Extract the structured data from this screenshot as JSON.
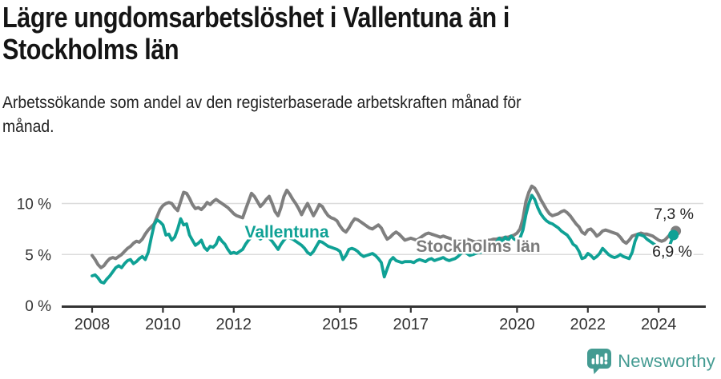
{
  "header": {
    "title": "Lägre ungdomsarbetslöshet i Vallentuna än i\nStockholms län",
    "subtitle": "Arbetssökande som andel av den registerbaserade arbetskraften månad för\nmånad."
  },
  "footer": {
    "brand": "Newsworthy",
    "logo_icon": "bar-chart-speech-bubble-icon"
  },
  "colors": {
    "vallentuna_line": "#0FA195",
    "stockholm_line": "#7F7F7F",
    "stockholm_label": "#7B7B7B",
    "axis": "#333333",
    "grid": "#DCDCDC",
    "title_text": "#151515",
    "brand_teal": "#449B92",
    "end_label_text": "#222222"
  },
  "chart_data": {
    "type": "line",
    "title": "Lägre ungdomsarbetslöshet i Vallentuna än i Stockholms län",
    "xlabel": "",
    "ylabel": "Arbetssökande som andel av den registerbaserade arbetskraften",
    "frequency": "monthly",
    "x_start": "2008-01",
    "x_end": "2024-06",
    "x_ticks": [
      2008,
      2010,
      2012,
      2015,
      2017,
      2020,
      2022,
      2024
    ],
    "y_ticks": [
      {
        "value": 0,
        "label": "0 %"
      },
      {
        "value": 5,
        "label": "5 %"
      },
      {
        "value": 10,
        "label": "10 %"
      }
    ],
    "ylim": [
      0,
      12.8
    ],
    "grid": "horizontal-only",
    "legend_position": "inline-labels",
    "series": [
      {
        "name": "Stockholms län",
        "color": "#7F7F7F",
        "end_label": "7,3 %",
        "last_value": 7.3,
        "values": [
          4.9,
          4.5,
          4.0,
          3.7,
          3.9,
          4.3,
          4.6,
          4.7,
          4.6,
          4.8,
          5.0,
          5.3,
          5.6,
          5.8,
          6.1,
          6.3,
          6.2,
          6.5,
          7.0,
          7.4,
          7.7,
          8.0,
          8.7,
          9.4,
          9.8,
          10.0,
          10.1,
          10.0,
          9.6,
          9.3,
          10.2,
          11.1,
          11.0,
          10.5,
          9.9,
          9.5,
          9.6,
          9.4,
          9.7,
          10.1,
          9.9,
          10.2,
          10.4,
          10.2,
          10.0,
          9.8,
          9.6,
          9.3,
          9.0,
          8.8,
          8.7,
          8.6,
          9.4,
          10.2,
          11.0,
          10.7,
          10.2,
          9.7,
          10.0,
          10.4,
          10.7,
          10.0,
          9.2,
          8.8,
          9.6,
          10.7,
          11.3,
          10.9,
          10.4,
          10.0,
          9.5,
          8.9,
          9.5,
          10.0,
          9.4,
          8.8,
          9.3,
          9.9,
          9.7,
          9.2,
          8.8,
          8.6,
          8.5,
          8.3,
          7.8,
          7.4,
          7.2,
          7.6,
          8.1,
          8.5,
          8.4,
          8.2,
          8.0,
          7.8,
          7.6,
          7.5,
          7.7,
          7.9,
          7.6,
          7.0,
          6.5,
          6.7,
          7.0,
          7.2,
          7.0,
          6.7,
          6.4,
          6.5,
          6.6,
          6.5,
          6.4,
          6.6,
          6.8,
          7.0,
          7.1,
          7.0,
          6.9,
          6.8,
          6.7,
          6.8,
          6.7,
          6.6,
          6.5,
          6.4,
          6.3,
          6.3,
          6.4,
          6.5,
          6.4,
          6.3,
          6.2,
          6.3,
          6.3,
          6.3,
          6.4,
          6.4,
          6.5,
          6.5,
          6.6,
          6.6,
          6.7,
          6.7,
          6.8,
          6.9,
          7.1,
          7.5,
          8.5,
          10.2,
          11.1,
          11.7,
          11.5,
          11.0,
          10.4,
          9.9,
          9.4,
          9.0,
          8.8,
          8.9,
          9.0,
          9.2,
          9.3,
          9.1,
          8.8,
          8.4,
          8.0,
          7.7,
          7.2,
          7.0,
          7.4,
          7.5,
          7.2,
          6.8,
          7.0,
          7.3,
          7.4,
          7.3,
          7.2,
          7.1,
          7.0,
          6.7,
          6.3,
          6.1,
          6.4,
          6.8,
          6.9,
          7.0,
          7.1,
          7.0,
          7.0,
          6.9,
          6.8,
          6.6,
          6.4,
          6.3,
          6.4,
          6.7,
          7.0,
          7.3
        ]
      },
      {
        "name": "Vallentuna",
        "color": "#0FA195",
        "end_label": "6,9 %",
        "last_value": 6.9,
        "values": [
          2.9,
          3.0,
          2.7,
          2.3,
          2.2,
          2.6,
          2.9,
          3.3,
          3.7,
          3.9,
          3.7,
          4.1,
          4.4,
          4.5,
          4.1,
          4.3,
          4.6,
          4.8,
          4.5,
          5.2,
          6.6,
          7.9,
          8.4,
          8.2,
          7.9,
          6.9,
          7.0,
          6.4,
          6.7,
          7.5,
          8.5,
          7.9,
          8.0,
          6.9,
          6.4,
          5.9,
          6.1,
          6.4,
          5.7,
          5.4,
          5.8,
          5.7,
          6.0,
          6.7,
          6.3,
          6.0,
          5.5,
          5.1,
          5.2,
          5.1,
          5.3,
          5.5,
          6.0,
          6.4,
          6.7,
          7.0,
          6.7,
          6.5,
          6.7,
          6.8,
          6.6,
          6.3,
          5.9,
          5.5,
          6.0,
          6.4,
          6.7,
          6.6,
          6.5,
          6.3,
          6.1,
          5.9,
          5.6,
          5.2,
          5.0,
          5.3,
          5.8,
          6.3,
          6.2,
          6.0,
          5.8,
          5.7,
          5.6,
          5.5,
          5.3,
          4.5,
          4.9,
          5.5,
          5.6,
          5.5,
          5.3,
          5.0,
          4.8,
          4.9,
          5.0,
          5.1,
          4.9,
          4.6,
          4.2,
          2.8,
          3.6,
          4.4,
          4.7,
          4.4,
          4.3,
          4.2,
          4.3,
          4.3,
          4.3,
          4.2,
          4.4,
          4.5,
          4.4,
          4.3,
          4.5,
          4.6,
          4.4,
          4.5,
          4.6,
          4.7,
          4.5,
          4.4,
          4.5,
          4.6,
          4.8,
          5.1,
          5.3,
          5.1,
          4.9,
          5.0,
          5.1,
          5.2,
          5.2,
          5.5,
          5.3,
          5.6,
          5.9,
          6.2,
          6.6,
          6.3,
          6.7,
          6.4,
          6.8,
          6.5,
          6.4,
          6.6,
          7.4,
          8.9,
          10.0,
          10.8,
          10.4,
          9.6,
          9.0,
          8.6,
          8.3,
          8.1,
          8.0,
          7.8,
          7.6,
          7.3,
          7.1,
          6.9,
          6.5,
          6.0,
          5.8,
          5.3,
          4.6,
          4.7,
          5.1,
          4.9,
          4.6,
          4.8,
          5.1,
          5.6,
          5.3,
          5.0,
          4.8,
          4.7,
          4.8,
          5.0,
          4.8,
          4.7,
          4.6,
          5.2,
          6.3,
          7.0,
          6.9,
          6.8,
          6.5,
          6.3,
          6.1,
          5.9,
          5.5,
          4.9,
          4.7,
          5.3,
          6.1,
          6.9
        ]
      }
    ]
  }
}
